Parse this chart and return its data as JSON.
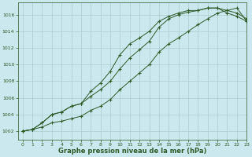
{
  "xlabel": "Graphe pression niveau de la mer (hPa)",
  "xlim": [
    -0.5,
    23
  ],
  "ylim": [
    1001.0,
    1017.5
  ],
  "yticks": [
    1002,
    1004,
    1006,
    1008,
    1010,
    1012,
    1014,
    1016
  ],
  "xticks": [
    0,
    1,
    2,
    3,
    4,
    5,
    6,
    7,
    8,
    9,
    10,
    11,
    12,
    13,
    14,
    15,
    16,
    17,
    18,
    19,
    20,
    21,
    22,
    23
  ],
  "bg_color": "#cce8ef",
  "grid_color": "#aacccc",
  "line_color": "#2d5a27",
  "line1_x": [
    0,
    1,
    2,
    3,
    4,
    5,
    6,
    7,
    8,
    9,
    10,
    11,
    12,
    13,
    14,
    15,
    16,
    17,
    18,
    19,
    20,
    21,
    22,
    23
  ],
  "line1_y": [
    1002.0,
    1002.2,
    1003.0,
    1004.0,
    1004.3,
    1005.0,
    1005.3,
    1006.8,
    1007.8,
    1009.2,
    1011.2,
    1012.5,
    1013.2,
    1014.0,
    1015.2,
    1015.8,
    1016.2,
    1016.5,
    1016.5,
    1016.8,
    1016.8,
    1016.2,
    1015.8,
    1015.2
  ],
  "line2_x": [
    0,
    1,
    2,
    3,
    4,
    5,
    6,
    7,
    8,
    9,
    10,
    11,
    12,
    13,
    14,
    15,
    16,
    17,
    18,
    19,
    20,
    21,
    22,
    23
  ],
  "line2_y": [
    1002.0,
    1002.2,
    1003.0,
    1004.0,
    1004.3,
    1005.0,
    1005.3,
    1006.2,
    1007.0,
    1008.0,
    1009.5,
    1010.8,
    1011.8,
    1012.8,
    1014.5,
    1015.5,
    1016.0,
    1016.3,
    1016.5,
    1016.8,
    1016.8,
    1016.5,
    1016.2,
    1015.5
  ],
  "line3_x": [
    0,
    1,
    2,
    3,
    4,
    5,
    6,
    7,
    8,
    9,
    10,
    11,
    12,
    13,
    14,
    15,
    16,
    17,
    18,
    19,
    20,
    21,
    22,
    23
  ],
  "line3_y": [
    1002.0,
    1002.2,
    1002.5,
    1003.0,
    1003.2,
    1003.5,
    1003.8,
    1004.5,
    1005.0,
    1005.8,
    1007.0,
    1008.0,
    1009.0,
    1010.0,
    1011.5,
    1012.5,
    1013.2,
    1014.0,
    1014.8,
    1015.5,
    1016.2,
    1016.5,
    1016.8,
    1015.2
  ]
}
